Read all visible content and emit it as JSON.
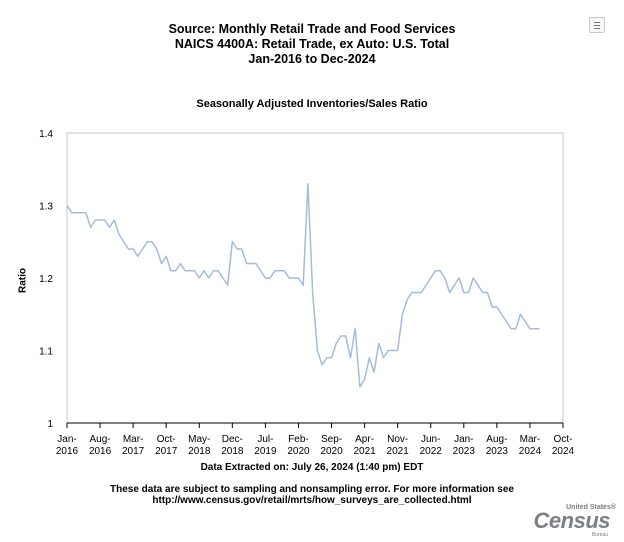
{
  "header": {
    "line1": "Source: Monthly Retail Trade and Food Services",
    "line2": "NAICS 4400A: Retail Trade, ex Auto: U.S. Total",
    "line3": "Jan-2016 to Dec-2024"
  },
  "footer": {
    "extracted": "Data Extracted on: July 26, 2024 (1:40 pm) EDT",
    "note_line1": "These data are subject to sampling and nonsampling error. For more information see",
    "note_line2": "http://www.census.gov/retail/mrts/how_surveys_are_collected.html"
  },
  "logo": {
    "top": "United States®",
    "main": "Census",
    "bottom": "Bureau"
  },
  "colors": {
    "line": "#a4bcd9",
    "axis": "#000000"
  },
  "chart_data": {
    "type": "line",
    "title": "Seasonally Adjusted Inventories/Sales Ratio",
    "xlabel": "",
    "ylabel": "Ratio",
    "ylim": [
      1,
      1.4
    ],
    "yticks": [
      "1",
      "1.1",
      "1.2",
      "1.3",
      "1.4"
    ],
    "ytick_values": [
      1,
      1.1,
      1.2,
      1.3,
      1.4
    ],
    "xlim_months": [
      0,
      105
    ],
    "xticks": [
      {
        "m": 0,
        "top": "Jan-",
        "bottom": "2016"
      },
      {
        "m": 7,
        "top": "Aug-",
        "bottom": "2016"
      },
      {
        "m": 14,
        "top": "Mar-",
        "bottom": "2017"
      },
      {
        "m": 21,
        "top": "Oct-",
        "bottom": "2017"
      },
      {
        "m": 28,
        "top": "May-",
        "bottom": "2018"
      },
      {
        "m": 35,
        "top": "Dec-",
        "bottom": "2018"
      },
      {
        "m": 42,
        "top": "Jul-",
        "bottom": "2019"
      },
      {
        "m": 49,
        "top": "Feb-",
        "bottom": "2020"
      },
      {
        "m": 56,
        "top": "Sep-",
        "bottom": "2020"
      },
      {
        "m": 63,
        "top": "Apr-",
        "bottom": "2021"
      },
      {
        "m": 70,
        "top": "Nov-",
        "bottom": "2021"
      },
      {
        "m": 77,
        "top": "Jun-",
        "bottom": "2022"
      },
      {
        "m": 84,
        "top": "Jan-",
        "bottom": "2023"
      },
      {
        "m": 91,
        "top": "Aug-",
        "bottom": "2023"
      },
      {
        "m": 98,
        "top": "Mar-",
        "bottom": "2024"
      },
      {
        "m": 105,
        "top": "Oct-",
        "bottom": "2024"
      }
    ],
    "series": [
      {
        "name": "Inventories/Sales Ratio",
        "start": "Jan-2016",
        "values": [
          1.3,
          1.29,
          1.29,
          1.29,
          1.29,
          1.27,
          1.28,
          1.28,
          1.28,
          1.27,
          1.28,
          1.26,
          1.25,
          1.24,
          1.24,
          1.23,
          1.24,
          1.25,
          1.25,
          1.24,
          1.22,
          1.23,
          1.21,
          1.21,
          1.22,
          1.21,
          1.21,
          1.21,
          1.2,
          1.21,
          1.2,
          1.21,
          1.21,
          1.2,
          1.19,
          1.25,
          1.24,
          1.24,
          1.22,
          1.22,
          1.22,
          1.21,
          1.2,
          1.2,
          1.21,
          1.21,
          1.21,
          1.2,
          1.2,
          1.2,
          1.19,
          1.33,
          1.18,
          1.1,
          1.08,
          1.09,
          1.09,
          1.11,
          1.12,
          1.12,
          1.09,
          1.13,
          1.05,
          1.06,
          1.09,
          1.07,
          1.11,
          1.09,
          1.1,
          1.1,
          1.1,
          1.15,
          1.17,
          1.18,
          1.18,
          1.18,
          1.19,
          1.2,
          1.21,
          1.21,
          1.2,
          1.18,
          1.19,
          1.2,
          1.18,
          1.18,
          1.2,
          1.19,
          1.18,
          1.18,
          1.16,
          1.16,
          1.15,
          1.14,
          1.13,
          1.13,
          1.15,
          1.14,
          1.13,
          1.13,
          1.13
        ]
      }
    ]
  }
}
